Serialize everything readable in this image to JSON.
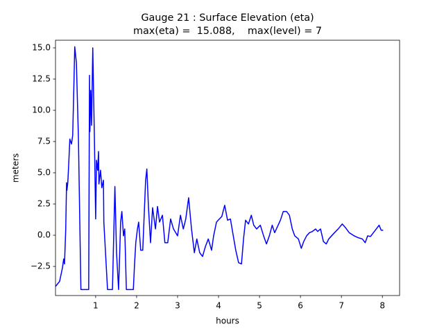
{
  "chart_data": {
    "type": "line",
    "title": "Gauge 21 : Surface Elevation (eta)",
    "subtitle": "max(eta) =  15.088,    max(level) = 7",
    "x_label": "hours",
    "y_label": "meters",
    "color": "#0000ff",
    "x": [
      0.02,
      0.12,
      0.19,
      0.22,
      0.24,
      0.27,
      0.29,
      0.3,
      0.32,
      0.34,
      0.37,
      0.41,
      0.44,
      0.47,
      0.49,
      0.53,
      0.58,
      0.64,
      0.83,
      0.85,
      0.86,
      0.88,
      0.9,
      0.93,
      0.97,
      1.0,
      1.02,
      1.05,
      1.07,
      1.08,
      1.12,
      1.15,
      1.19,
      1.2,
      1.29,
      1.41,
      1.47,
      1.51,
      1.56,
      1.61,
      1.64,
      1.68,
      1.71,
      1.75,
      1.92,
      1.95,
      1.98,
      2.02,
      2.05,
      2.1,
      2.15,
      2.22,
      2.25,
      2.29,
      2.34,
      2.39,
      2.46,
      2.51,
      2.56,
      2.63,
      2.69,
      2.76,
      2.83,
      2.9,
      3.0,
      3.07,
      3.14,
      3.2,
      3.27,
      3.34,
      3.41,
      3.47,
      3.54,
      3.61,
      3.68,
      3.75,
      3.83,
      3.88,
      3.95,
      4.02,
      4.08,
      4.15,
      4.22,
      4.29,
      4.36,
      4.42,
      4.49,
      4.56,
      4.61,
      4.66,
      4.73,
      4.8,
      4.86,
      4.93,
      5.02,
      5.1,
      5.17,
      5.24,
      5.31,
      5.37,
      5.44,
      5.51,
      5.58,
      5.66,
      5.73,
      5.8,
      5.86,
      5.95,
      6.02,
      6.08,
      6.15,
      6.22,
      6.29,
      6.37,
      6.42,
      6.49,
      6.56,
      6.63,
      6.69,
      6.76,
      6.83,
      6.92,
      7.02,
      7.1,
      7.19,
      7.31,
      7.41,
      7.51,
      7.58,
      7.64,
      7.71,
      7.78,
      7.85,
      7.92,
      7.97,
      8.02
    ],
    "values": [
      -4.1,
      -3.7,
      -2.6,
      -1.9,
      -2.3,
      0.5,
      4.2,
      3.6,
      4.2,
      5.5,
      7.7,
      7.3,
      8.0,
      12.2,
      15.088,
      13.8,
      7.7,
      -4.35,
      -4.35,
      12.8,
      8.3,
      11.6,
      8.8,
      15.0,
      7.7,
      1.3,
      6.0,
      5.2,
      6.7,
      4.1,
      5.2,
      3.8,
      4.4,
      1.05,
      -4.35,
      -4.35,
      3.9,
      -1.4,
      -4.35,
      1.05,
      1.9,
      -0.05,
      0.5,
      -4.35,
      -4.35,
      -2.3,
      -0.6,
      0.5,
      1.05,
      -1.2,
      -1.2,
      4.4,
      5.3,
      2.2,
      -0.6,
      2.2,
      0.5,
      2.3,
      1.05,
      1.6,
      -0.6,
      -0.6,
      1.3,
      0.5,
      -0.05,
      1.6,
      0.5,
      1.3,
      3.0,
      0.5,
      -1.4,
      -0.3,
      -1.4,
      -1.7,
      -0.9,
      -0.3,
      -1.2,
      -0.05,
      1.05,
      1.3,
      1.5,
      2.4,
      1.2,
      1.3,
      -0.05,
      -1.2,
      -2.2,
      -2.3,
      -0.3,
      1.2,
      0.9,
      1.6,
      0.8,
      0.5,
      0.8,
      -0.05,
      -0.7,
      -0.05,
      0.8,
      0.2,
      0.7,
      1.2,
      1.9,
      1.9,
      1.6,
      0.5,
      -0.05,
      -0.3,
      -1.05,
      -0.5,
      -0.05,
      0.2,
      0.3,
      0.5,
      0.3,
      0.5,
      -0.5,
      -0.7,
      -0.3,
      -0.05,
      0.2,
      0.5,
      0.9,
      0.6,
      0.2,
      -0.05,
      -0.2,
      -0.3,
      -0.6,
      -0.05,
      -0.1,
      0.2,
      0.5,
      0.8,
      0.4,
      0.4
    ],
    "xlim": [
      0.02,
      8.42
    ],
    "ylim": [
      -4.83,
      15.61
    ],
    "xticks": [
      1,
      2,
      3,
      4,
      5,
      6,
      7,
      8
    ],
    "yticks": [
      {
        "value": -2.5,
        "label": "−2.5"
      },
      {
        "value": 0,
        "label": "0.0"
      },
      2.5,
      {
        "value": 5,
        "label": "5.0"
      },
      7.5,
      {
        "value": 10,
        "label": "10.0"
      },
      12.5,
      {
        "value": 15,
        "label": "15.0"
      }
    ],
    "grid": false
  }
}
